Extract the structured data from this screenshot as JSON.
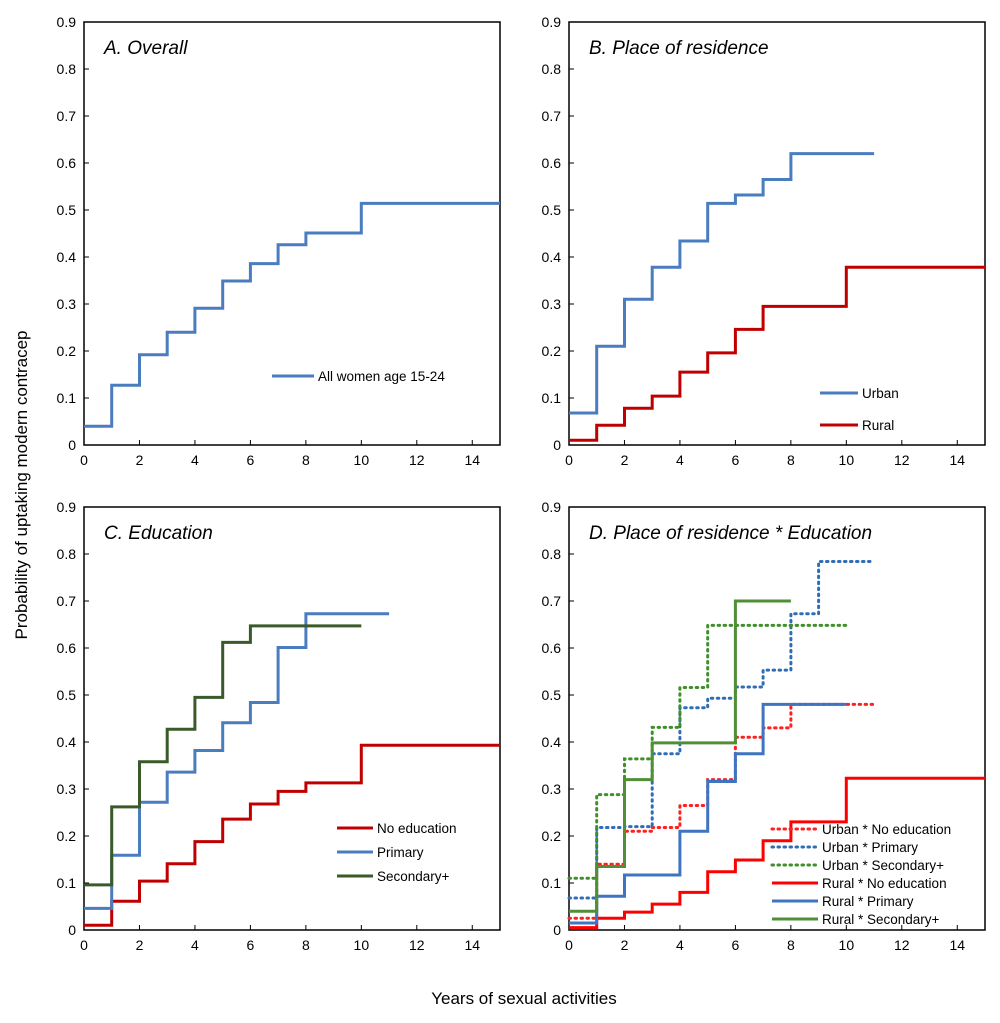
{
  "figure": {
    "ylabel": "Probability of uptaking modern contracep",
    "xlabel": "Years of sexual activities"
  },
  "chart_data": [
    {
      "type": "line",
      "title": "A. Overall",
      "xlim": [
        0,
        15
      ],
      "ylim": [
        0,
        0.9
      ],
      "xticks": [
        "0",
        "2",
        "4",
        "6",
        "8",
        "10",
        "12",
        "14"
      ],
      "yticks": [
        "0",
        "0.1",
        "0.2",
        "0.3",
        "0.4",
        "0.5",
        "0.6",
        "0.7",
        "0.8",
        "0.9"
      ],
      "grid": false,
      "legend_position": "center-right",
      "series": [
        {
          "name": "All women age 15-24",
          "color": "#4a7cc0",
          "style": "solid",
          "x": [
            0,
            1,
            2,
            3,
            4,
            5,
            6,
            7,
            8,
            10,
            15
          ],
          "y": [
            0.04,
            0.127,
            0.192,
            0.24,
            0.291,
            0.349,
            0.386,
            0.426,
            0.451,
            0.514,
            0.514
          ]
        }
      ]
    },
    {
      "type": "line",
      "title": "B. Place of residence",
      "xlim": [
        0,
        15
      ],
      "ylim": [
        0,
        0.9
      ],
      "xticks": [
        "0",
        "2",
        "4",
        "6",
        "8",
        "10",
        "12",
        "14"
      ],
      "yticks": [
        "0",
        "0.1",
        "0.2",
        "0.3",
        "0.4",
        "0.5",
        "0.6",
        "0.7",
        "0.8",
        "0.9"
      ],
      "grid": false,
      "legend_position": "bottom-right",
      "series": [
        {
          "name": "Urban",
          "color": "#4a7cc0",
          "style": "solid",
          "x": [
            0,
            1,
            2,
            3,
            4,
            5,
            6,
            7,
            8,
            11
          ],
          "y": [
            0.068,
            0.21,
            0.31,
            0.378,
            0.434,
            0.514,
            0.532,
            0.565,
            0.62,
            0.62
          ]
        },
        {
          "name": "Rural",
          "color": "#c00000",
          "style": "solid",
          "x": [
            0,
            1,
            2,
            3,
            4,
            5,
            6,
            7,
            8,
            10,
            15
          ],
          "y": [
            0.01,
            0.042,
            0.078,
            0.104,
            0.155,
            0.196,
            0.246,
            0.295,
            0.295,
            0.378,
            0.378
          ]
        }
      ]
    },
    {
      "type": "line",
      "title": "C. Education",
      "xlim": [
        0,
        15
      ],
      "ylim": [
        0,
        0.9
      ],
      "xticks": [
        "0",
        "2",
        "4",
        "6",
        "8",
        "10",
        "12",
        "14"
      ],
      "yticks": [
        "0",
        "0.1",
        "0.2",
        "0.3",
        "0.4",
        "0.5",
        "0.6",
        "0.7",
        "0.8",
        "0.9"
      ],
      "grid": false,
      "legend_position": "bottom-right",
      "series": [
        {
          "name": "No education",
          "color": "#c00000",
          "style": "solid",
          "x": [
            0,
            1,
            2,
            3,
            4,
            5,
            6,
            7,
            8,
            10,
            15
          ],
          "y": [
            0.01,
            0.061,
            0.104,
            0.141,
            0.188,
            0.236,
            0.268,
            0.295,
            0.313,
            0.393,
            0.393
          ]
        },
        {
          "name": "Primary",
          "color": "#4a7cc0",
          "style": "solid",
          "x": [
            0,
            1,
            2,
            3,
            4,
            5,
            6,
            7,
            8,
            11
          ],
          "y": [
            0.046,
            0.159,
            0.272,
            0.336,
            0.382,
            0.441,
            0.484,
            0.601,
            0.673,
            0.673
          ]
        },
        {
          "name": "Secondary+",
          "color": "#3a5a2a",
          "style": "solid",
          "x": [
            0,
            1,
            2,
            3,
            4,
            5,
            6,
            10
          ],
          "y": [
            0.096,
            0.262,
            0.358,
            0.427,
            0.495,
            0.612,
            0.647,
            0.647
          ]
        }
      ]
    },
    {
      "type": "line",
      "title": "D. Place of residence * Education",
      "xlim": [
        0,
        15
      ],
      "ylim": [
        0,
        0.9
      ],
      "xticks": [
        "0",
        "2",
        "4",
        "6",
        "8",
        "10",
        "12",
        "14"
      ],
      "yticks": [
        "0",
        "0.1",
        "0.2",
        "0.3",
        "0.4",
        "0.5",
        "0.6",
        "0.7",
        "0.8",
        "0.9"
      ],
      "grid": false,
      "legend_position": "bottom-right",
      "series": [
        {
          "name": "Urban  * No education",
          "color": "#ff2020",
          "style": "dotted",
          "x": [
            0,
            1,
            2,
            3,
            4,
            5,
            6,
            7,
            8,
            11
          ],
          "y": [
            0.025,
            0.14,
            0.21,
            0.218,
            0.265,
            0.32,
            0.41,
            0.43,
            0.48,
            0.48
          ]
        },
        {
          "name": "Urban  * Primary",
          "color": "#2f6db5",
          "style": "dotted",
          "x": [
            0,
            1,
            2,
            3,
            4,
            5,
            6,
            7,
            8,
            9,
            11
          ],
          "y": [
            0.068,
            0.218,
            0.22,
            0.375,
            0.473,
            0.493,
            0.517,
            0.553,
            0.673,
            0.784,
            0.784
          ]
        },
        {
          "name": "Urban  * Secondary+",
          "color": "#3f8f2a",
          "style": "dotted",
          "x": [
            0,
            1,
            2,
            3,
            4,
            5,
            6,
            7,
            8,
            10
          ],
          "y": [
            0.11,
            0.288,
            0.364,
            0.431,
            0.516,
            0.648,
            0.648,
            0.648,
            0.648,
            0.648
          ]
        },
        {
          "name": "Rural * No education",
          "color": "#ff0000",
          "style": "solid",
          "x": [
            0,
            1,
            2,
            3,
            4,
            5,
            6,
            7,
            8,
            10,
            15
          ],
          "y": [
            0.005,
            0.025,
            0.038,
            0.055,
            0.08,
            0.124,
            0.149,
            0.19,
            0.23,
            0.323,
            0.323
          ]
        },
        {
          "name": "Rural * Primary",
          "color": "#3f74c0",
          "style": "solid",
          "x": [
            0,
            1,
            2,
            3,
            4,
            5,
            6,
            7,
            8,
            10
          ],
          "y": [
            0.015,
            0.072,
            0.117,
            0.117,
            0.21,
            0.316,
            0.375,
            0.48,
            0.48,
            0.48
          ]
        },
        {
          "name": "Rural * Secondary+",
          "color": "#4f8f35",
          "style": "solid",
          "x": [
            0,
            1,
            2,
            3,
            4,
            5,
            6,
            8
          ],
          "y": [
            0.04,
            0.135,
            0.32,
            0.398,
            0.398,
            0.398,
            0.7,
            0.7
          ]
        }
      ]
    }
  ]
}
